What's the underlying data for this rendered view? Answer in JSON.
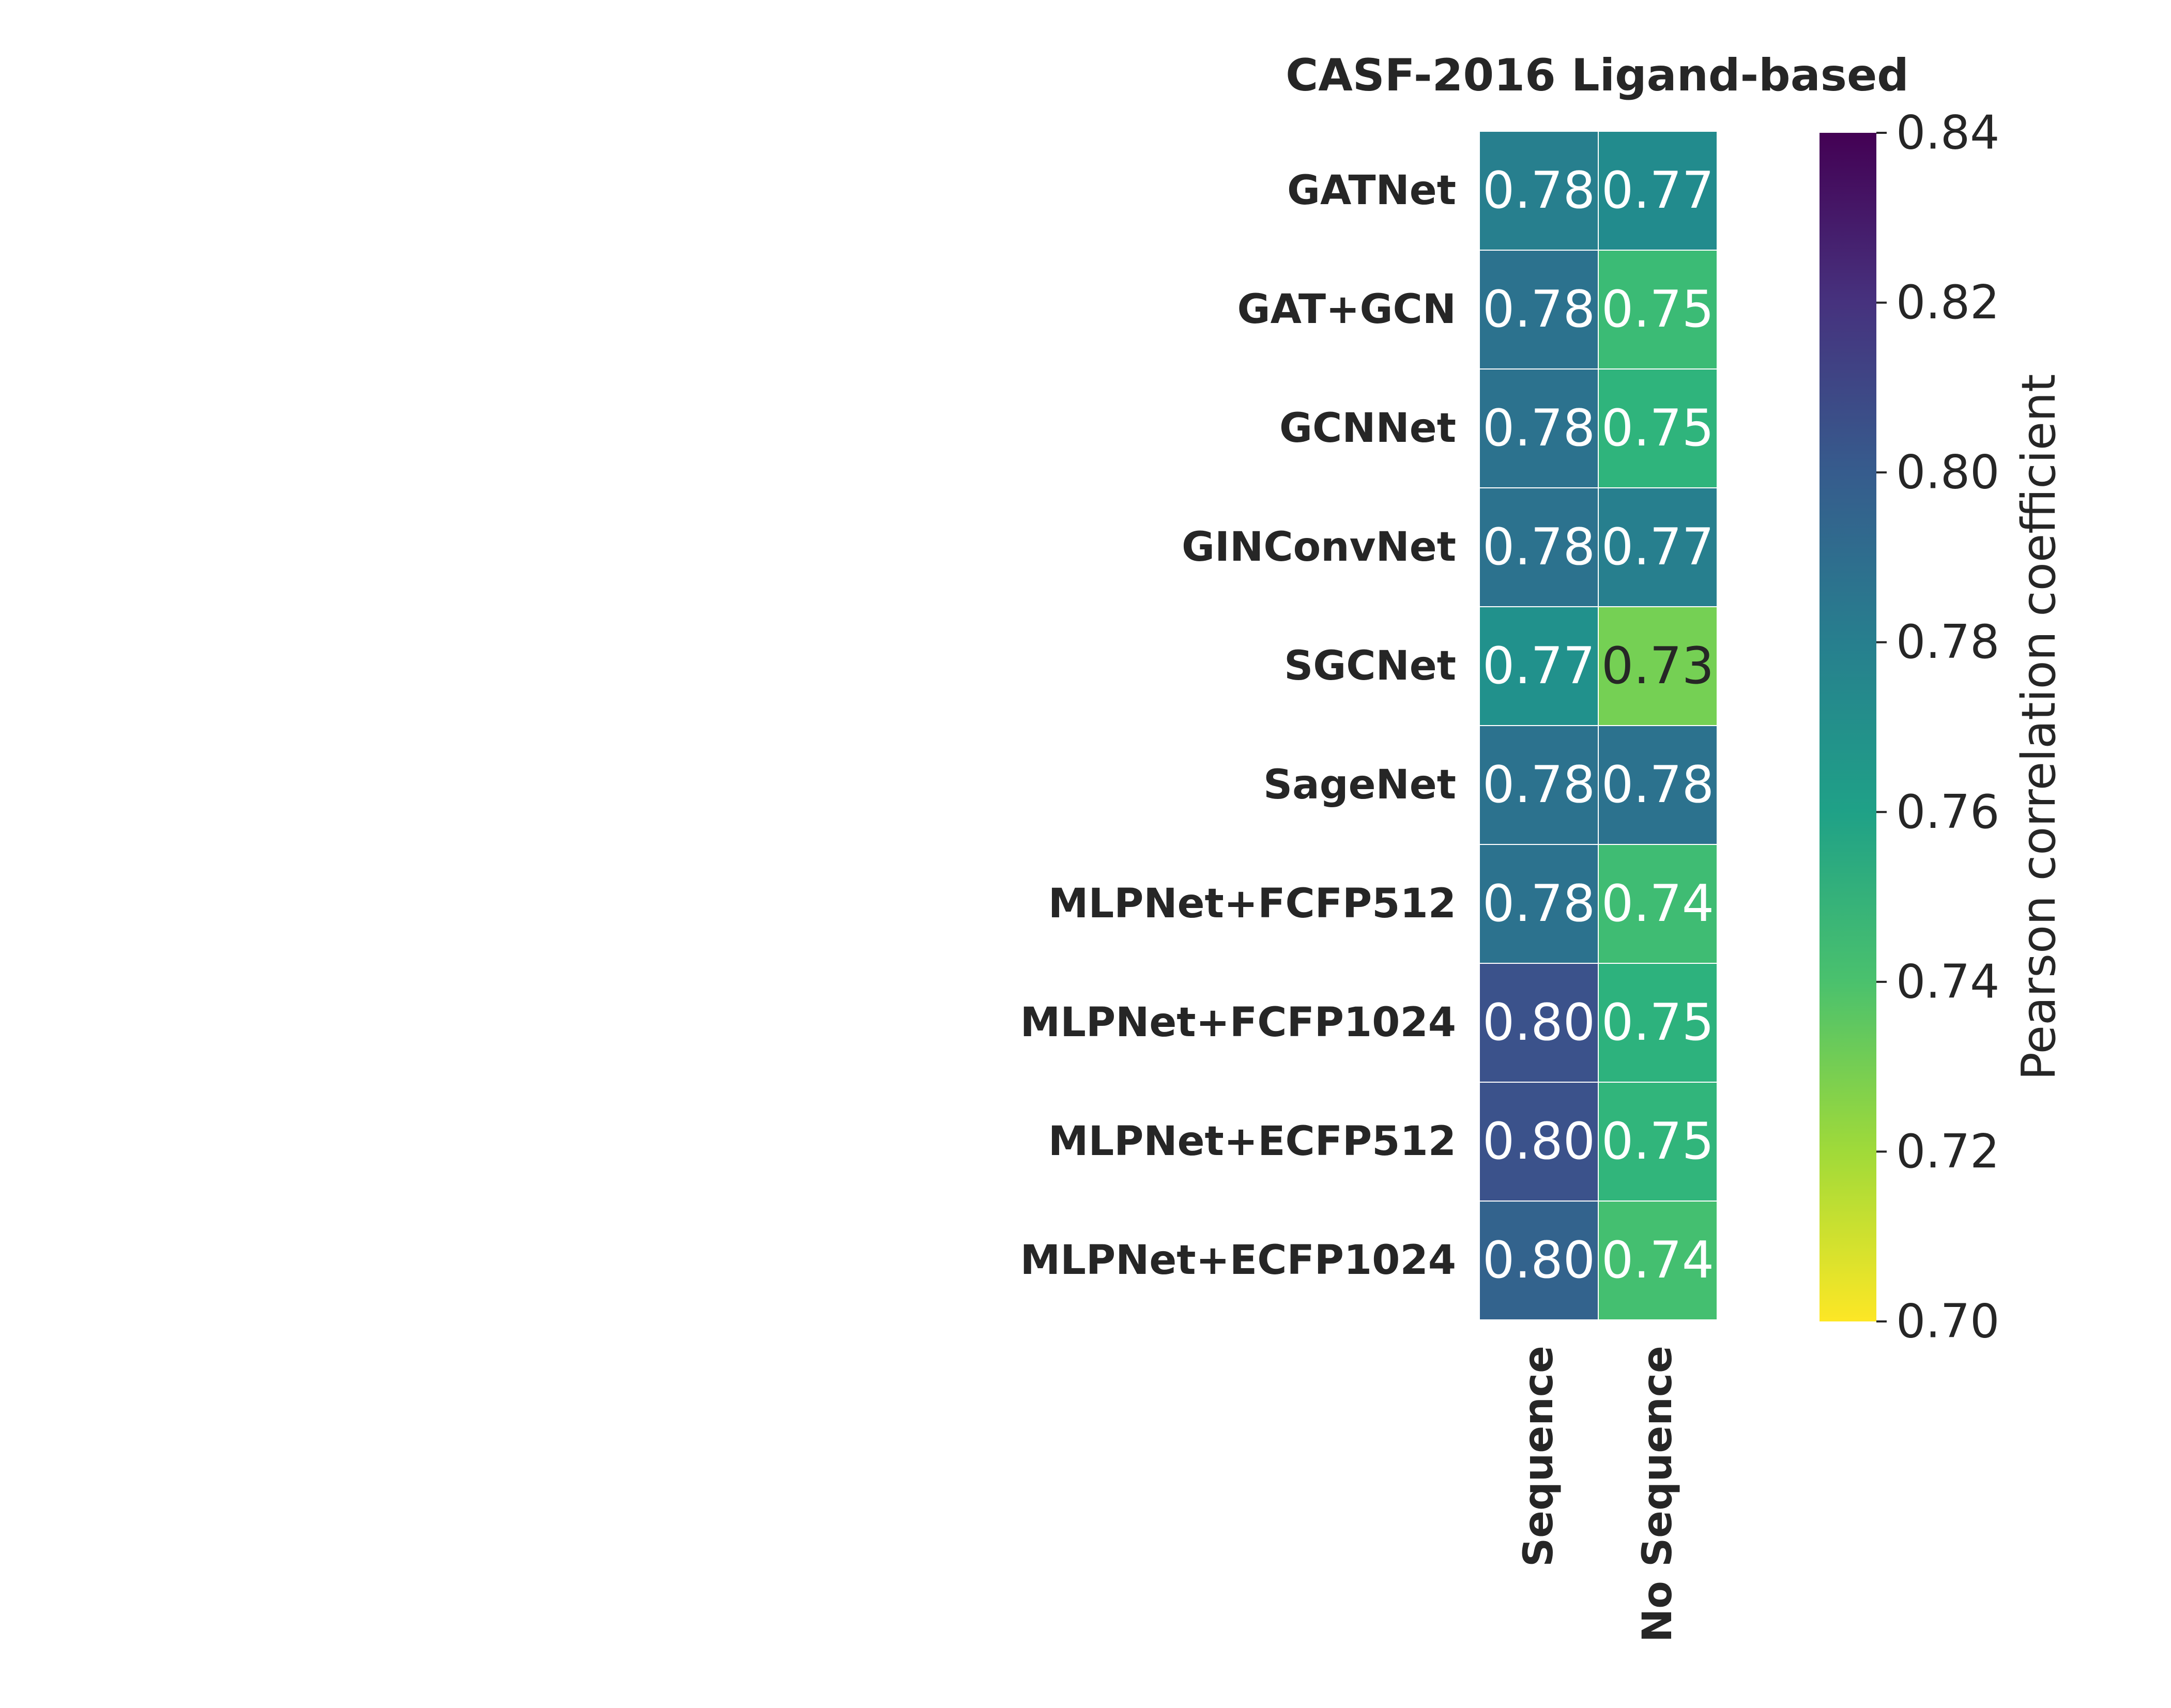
{
  "chart_data": {
    "type": "heatmap",
    "title": "CASF-2016 Ligand-based",
    "rows": [
      "GATNet",
      "GAT+GCN",
      "GCNNet",
      "GINConvNet",
      "SGCNet",
      "SageNet",
      "MLPNet+FCFP512",
      "MLPNet+FCFP1024",
      "MLPNet+ECFP512",
      "MLPNet+ECFP1024"
    ],
    "columns": [
      "Sequence",
      "No Sequence"
    ],
    "values": [
      [
        0.78,
        0.77
      ],
      [
        0.78,
        0.75
      ],
      [
        0.78,
        0.75
      ],
      [
        0.78,
        0.77
      ],
      [
        0.77,
        0.73
      ],
      [
        0.78,
        0.78
      ],
      [
        0.78,
        0.74
      ],
      [
        0.8,
        0.75
      ],
      [
        0.8,
        0.75
      ],
      [
        0.8,
        0.74
      ]
    ],
    "cell_colors": [
      [
        "#277f8e",
        "#228b8d"
      ],
      [
        "#2c728e",
        "#3bbb75"
      ],
      [
        "#2c728e",
        "#2fb47c"
      ],
      [
        "#2c728e",
        "#277f8e"
      ],
      [
        "#21918c",
        "#75d054"
      ],
      [
        "#2c728e",
        "#2c728e"
      ],
      [
        "#2c728e",
        "#3fbc73"
      ],
      [
        "#3b528b",
        "#2db27d"
      ],
      [
        "#3b528b",
        "#31b57b"
      ],
      [
        "#33638d",
        "#44bf70"
      ]
    ],
    "value_labels": [
      [
        "0.78",
        "0.77"
      ],
      [
        "0.78",
        "0.75"
      ],
      [
        "0.78",
        "0.75"
      ],
      [
        "0.78",
        "0.77"
      ],
      [
        "0.77",
        "0.73"
      ],
      [
        "0.78",
        "0.78"
      ],
      [
        "0.78",
        "0.74"
      ],
      [
        "0.80",
        "0.75"
      ],
      [
        "0.80",
        "0.75"
      ],
      [
        "0.80",
        "0.74"
      ]
    ],
    "label_colors": [
      [
        "#ffffff",
        "#ffffff"
      ],
      [
        "#ffffff",
        "#ffffff"
      ],
      [
        "#ffffff",
        "#ffffff"
      ],
      [
        "#ffffff",
        "#ffffff"
      ],
      [
        "#ffffff",
        "#262626"
      ],
      [
        "#ffffff",
        "#ffffff"
      ],
      [
        "#ffffff",
        "#ffffff"
      ],
      [
        "#ffffff",
        "#ffffff"
      ],
      [
        "#ffffff",
        "#ffffff"
      ],
      [
        "#ffffff",
        "#ffffff"
      ]
    ],
    "colorbar": {
      "label": "Pearson correlation coefficient",
      "colormap": "viridis (reversed)",
      "range": [
        0.7,
        0.84
      ],
      "ticks": [
        "0.84",
        "0.82",
        "0.80",
        "0.78",
        "0.76",
        "0.74",
        "0.72",
        "0.70"
      ]
    }
  }
}
